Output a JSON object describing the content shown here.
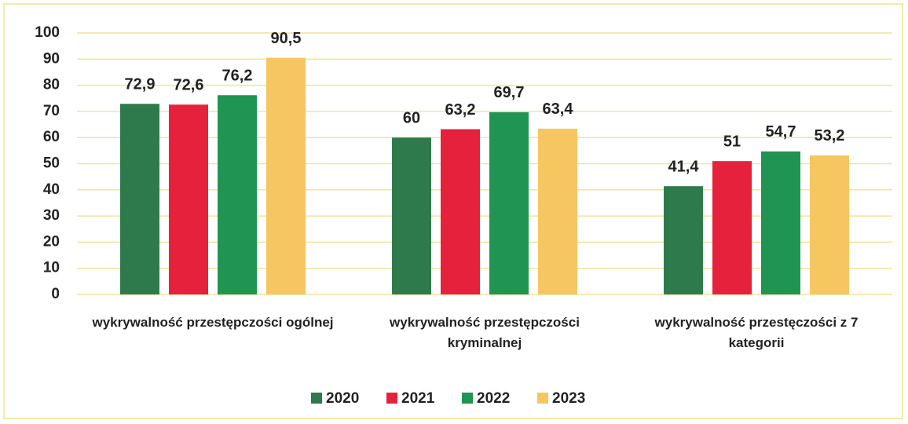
{
  "chart_data": {
    "type": "bar",
    "categories": [
      "wykrywalność przestępczości ogólnej",
      "wykrywalność przestępczości kryminalnej",
      "wykrywalność przestęczości z 7 kategorii"
    ],
    "series": [
      {
        "name": "2020",
        "color": "#2f7a4c",
        "values": [
          72.9,
          60,
          41.4
        ],
        "value_labels": [
          "72,9",
          "60",
          "41,4"
        ]
      },
      {
        "name": "2021",
        "color": "#e5213c",
        "values": [
          72.6,
          63.2,
          51
        ],
        "value_labels": [
          "72,6",
          "63,2",
          "51"
        ]
      },
      {
        "name": "2022",
        "color": "#1f9551",
        "values": [
          76.2,
          69.7,
          54.7
        ],
        "value_labels": [
          "76,2",
          "69,7",
          "54,7"
        ]
      },
      {
        "name": "2023",
        "color": "#f6c661",
        "values": [
          90.5,
          63.4,
          53.2
        ],
        "value_labels": [
          "90,5",
          "63,4",
          "53,2"
        ]
      }
    ],
    "ylim": [
      0,
      100
    ],
    "yticks": [
      0,
      10,
      20,
      30,
      40,
      50,
      60,
      70,
      80,
      90,
      100
    ],
    "grid": true,
    "legend": "bottom"
  }
}
